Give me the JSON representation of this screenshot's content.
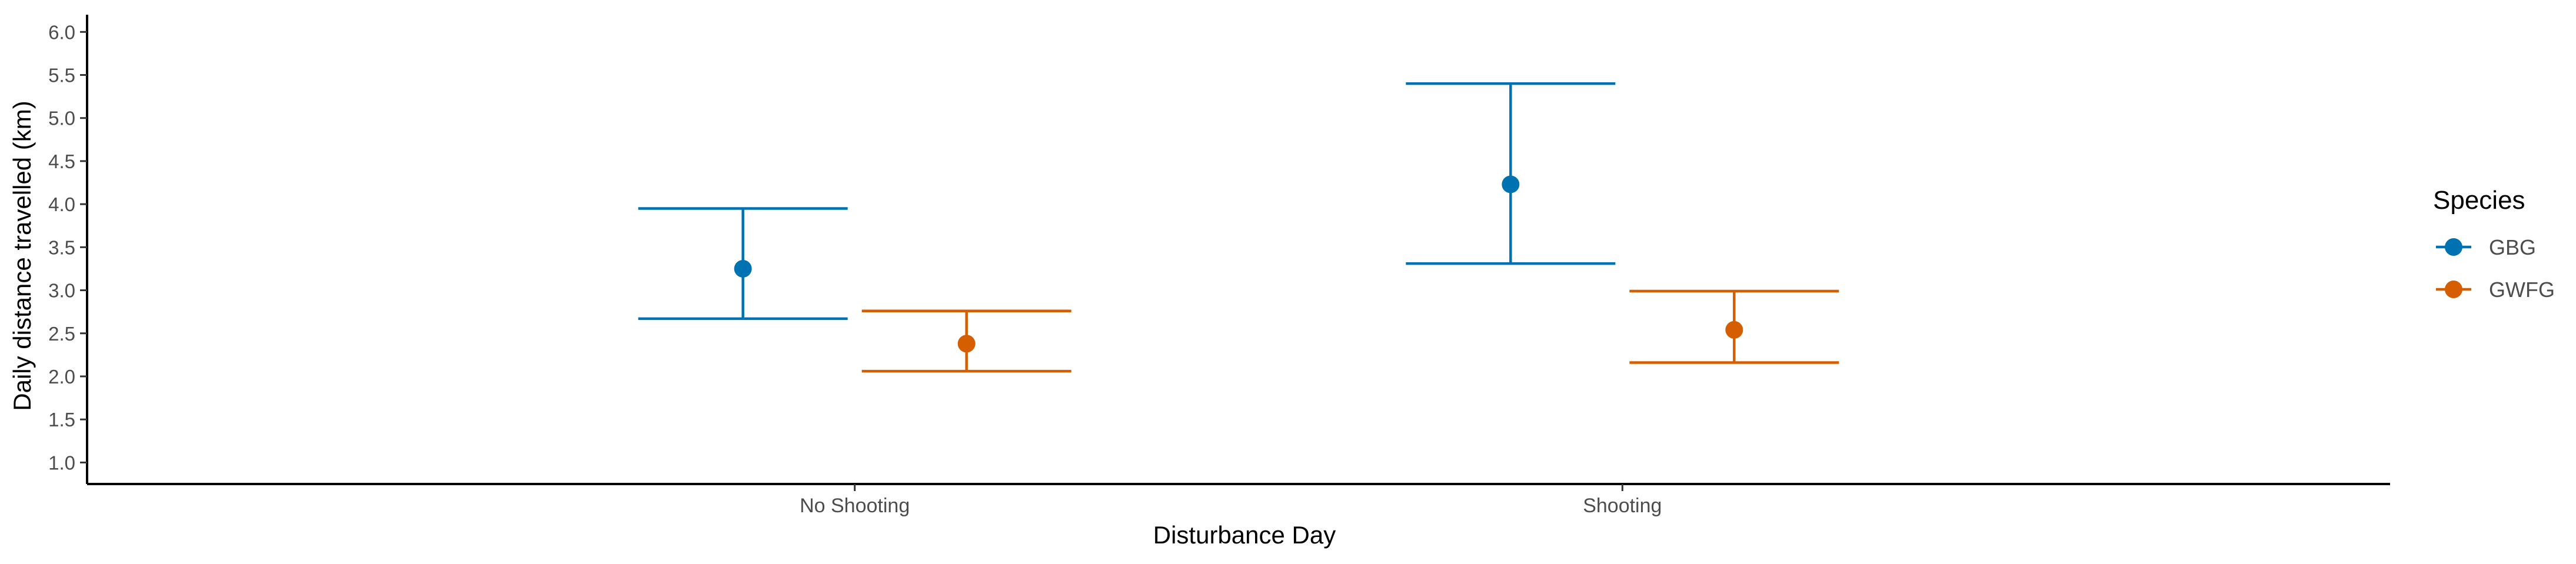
{
  "chart_data": {
    "type": "scatter",
    "title": "",
    "xlabel": "Disturbance Day",
    "ylabel": "Daily distance travelled (km)",
    "categories": [
      "No Shooting",
      "Shooting"
    ],
    "ylim": [
      0.75,
      6.2
    ],
    "yticks": [
      1.0,
      1.5,
      2.0,
      2.5,
      3.0,
      3.5,
      4.0,
      4.5,
      5.0,
      5.5,
      6.0
    ],
    "ytick_labels": [
      "1.0",
      "1.5",
      "2.0",
      "2.5",
      "3.0",
      "3.5",
      "4.0",
      "4.5",
      "5.0",
      "5.5",
      "6.0"
    ],
    "grid": false,
    "legend": {
      "title": "Species",
      "placement": "right"
    },
    "series": [
      {
        "name": "GBG",
        "color": "#0072B2",
        "values": [
          3.25,
          4.23
        ],
        "lower": [
          2.67,
          3.31
        ],
        "upper": [
          3.95,
          5.4
        ]
      },
      {
        "name": "GWFG",
        "color": "#D55E00",
        "values": [
          2.38,
          2.54
        ],
        "lower": [
          2.06,
          2.16
        ],
        "upper": [
          2.76,
          2.99
        ]
      }
    ]
  }
}
